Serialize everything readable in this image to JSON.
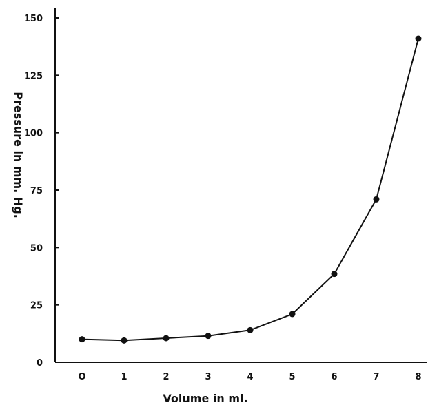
{
  "chart_data": {
    "type": "line",
    "title": "",
    "xlabel": "Volume in ml.",
    "ylabel": "Pressure in mm. Hg.",
    "x": [
      0,
      1,
      2,
      3,
      4,
      5,
      6,
      7,
      8
    ],
    "series": [
      {
        "values": [
          10,
          9.5,
          10.5,
          11.5,
          14,
          21,
          38.5,
          71,
          141
        ]
      }
    ],
    "x_tick_labels": [
      "O",
      "1",
      "2",
      "3",
      "4",
      "5",
      "6",
      "7",
      "8"
    ],
    "y_ticks": [
      0,
      25,
      50,
      75,
      100,
      125,
      150
    ],
    "y_tick_labels": [
      "0",
      "25",
      "50",
      "75",
      "100",
      "125",
      "150"
    ],
    "xlim": [
      0,
      8
    ],
    "ylim": [
      0,
      150
    ],
    "grid": false,
    "legend": "none",
    "colors": {
      "line": "#111111",
      "axis": "#111111"
    }
  }
}
